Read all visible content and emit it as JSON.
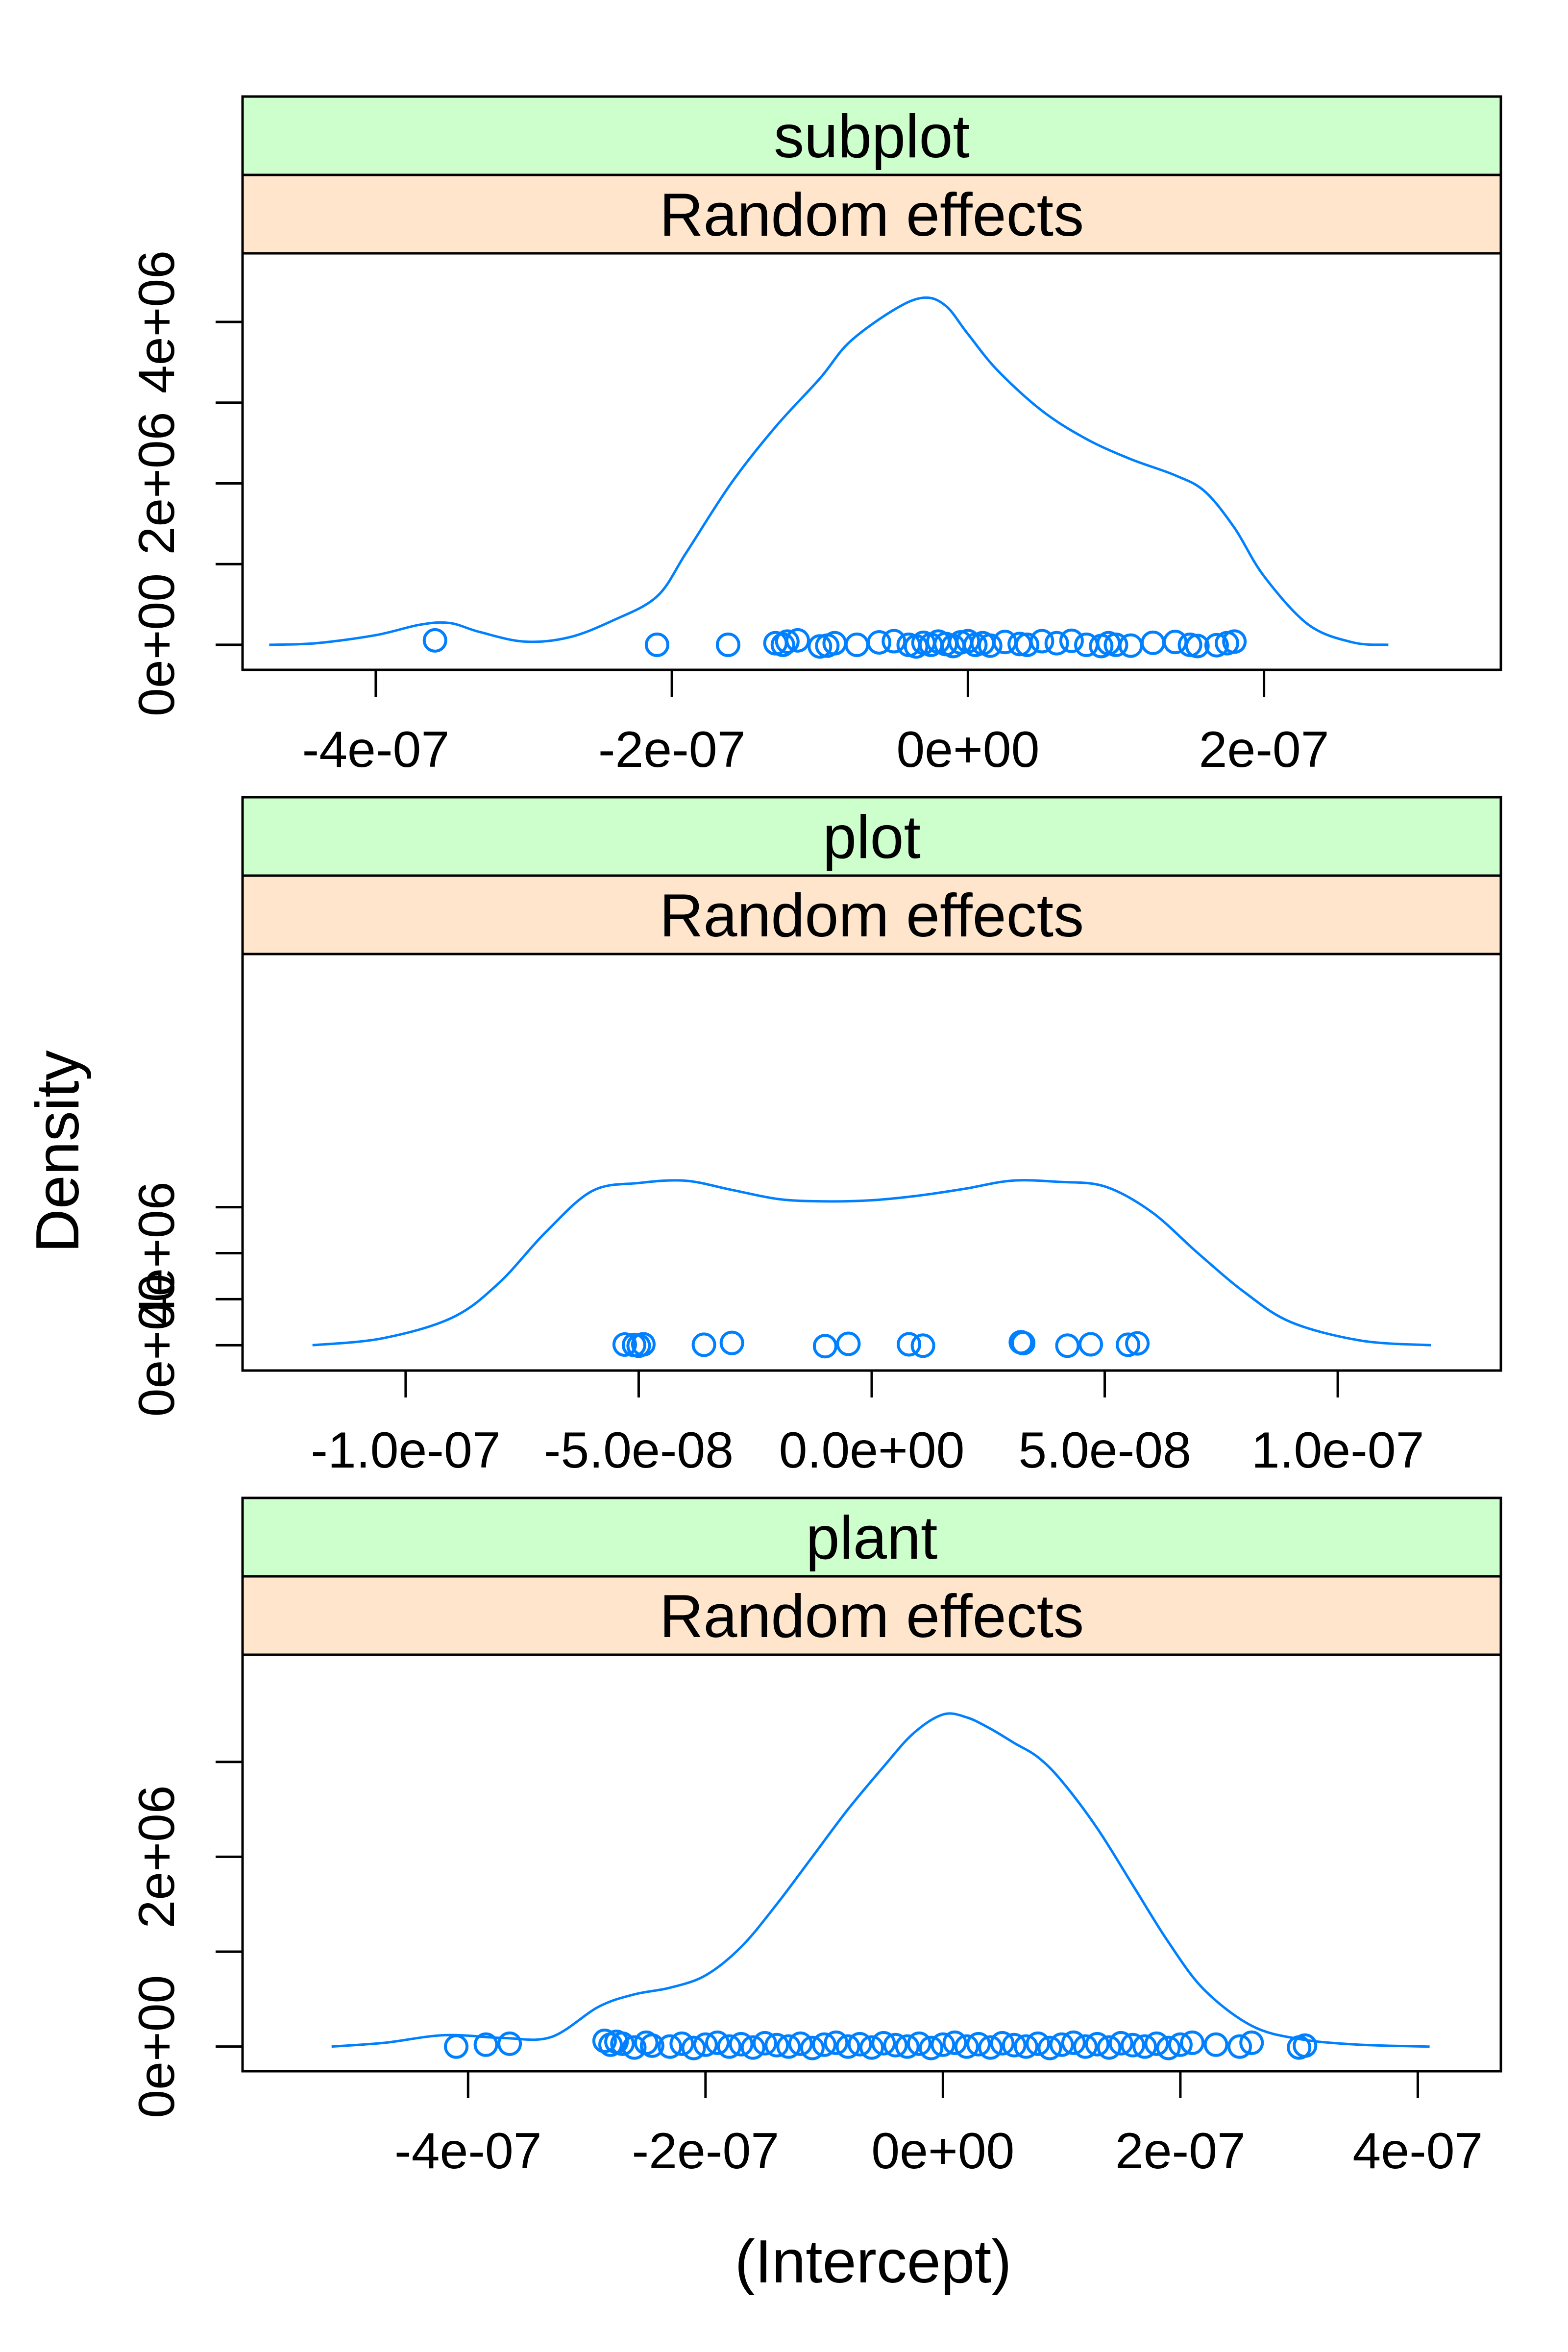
{
  "colors": {
    "curve": "#0080ff",
    "strip_top": "#ccffcc",
    "strip_bottom": "#ffe5cc",
    "frame": "#000000"
  },
  "chart_data": {
    "type": "density",
    "xlabel": "(Intercept)",
    "ylabel": "Density",
    "panels": [
      {
        "strip_top": "subplot",
        "strip_bottom": "Random effects",
        "xlim": [
          -4.9e-07,
          3.6e-07
        ],
        "ylim": [
          -310000.0,
          4850000.0
        ],
        "x_ticks": [
          -4e-07,
          -2e-07,
          0,
          2e-07
        ],
        "x_tick_labels": [
          "-4e-07",
          "-2e-07",
          "0e+00",
          "2e-07"
        ],
        "y_ticks": [
          0,
          1000000.0,
          2000000.0,
          3000000.0,
          4000000.0
        ],
        "y_tick_labels": [
          "0e+00",
          "",
          "2e+06",
          "",
          "4e+06"
        ],
        "density": {
          "x": [
            -4.72e-07,
            -4.4e-07,
            -4e-07,
            -3.7e-07,
            -3.5e-07,
            -3.3e-07,
            -3e-07,
            -2.7e-07,
            -2.4e-07,
            -2.1e-07,
            -1.9e-07,
            -1.6e-07,
            -1.3e-07,
            -1e-07,
            -8e-08,
            -5e-08,
            -3e-08,
            -1.5e-08,
            0,
            2e-08,
            5e-08,
            8e-08,
            1.1e-07,
            1.4e-07,
            1.6e-07,
            1.8e-07,
            2e-07,
            2.3e-07,
            2.6e-07,
            2.84e-07
          ],
          "y": [
            0,
            20000,
            120000,
            250000,
            270000,
            160000,
            40000,
            90000,
            300000,
            600000,
            1150000,
            2000000,
            2700000,
            3300000,
            3750000,
            4150000,
            4300000,
            4200000,
            3850000,
            3400000,
            2900000,
            2550000,
            2300000,
            2100000,
            1900000,
            1450000,
            850000,
            250000,
            30000,
            0
          ]
        },
        "rug": [
          -3.6e-07,
          -2.1e-07,
          -1.62e-07,
          -1.3e-07,
          -1.25e-07,
          -1.22e-07,
          -1.15e-07,
          -1e-07,
          -9.5e-08,
          -9e-08,
          -7.5e-08,
          -6e-08,
          -5e-08,
          -4e-08,
          -3.5e-08,
          -3e-08,
          -2.5e-08,
          -2e-08,
          -1.5e-08,
          -1e-08,
          -5e-09,
          0,
          5e-09,
          1e-08,
          1.5e-08,
          2.5e-08,
          3.5e-08,
          4e-08,
          5e-08,
          6e-08,
          7e-08,
          8e-08,
          9e-08,
          9.5e-08,
          1e-07,
          1.1e-07,
          1.25e-07,
          1.4e-07,
          1.5e-07,
          1.55e-07,
          1.68e-07,
          1.75e-07,
          1.8e-07
        ],
        "rug_y": [
          55000,
          0,
          0,
          20000,
          0,
          40000,
          55000,
          -20000,
          -10000,
          20000,
          0,
          30000,
          45000,
          0,
          -20000,
          25000,
          0,
          40000,
          10000,
          -15000,
          30000,
          45000,
          0,
          20000,
          -10000,
          35000,
          10000,
          0,
          45000,
          20000,
          50000,
          0,
          -15000,
          20000,
          0,
          -10000,
          25000,
          35000,
          0,
          -15000,
          -5000,
          20000,
          40000
        ]
      },
      {
        "strip_top": "plot",
        "strip_bottom": "Random effects",
        "xlim": [
          -1.35e-07,
          1.35e-07
        ],
        "ylim": [
          -1100000.0,
          17000000.0
        ],
        "x_ticks": [
          -1e-07,
          -5e-08,
          0,
          5e-08,
          1e-07
        ],
        "x_tick_labels": [
          "-1.0e-07",
          "-5.0e-08",
          "0.0e+00",
          "5.0e-08",
          "1.0e-07"
        ],
        "y_ticks": [
          0,
          2000000.0,
          4000000.0,
          6000000.0
        ],
        "y_tick_labels": [
          "0e+00",
          "",
          "4e+06",
          ""
        ],
        "density": {
          "x": [
            -1.2e-07,
            -1.05e-07,
            -9e-08,
            -8e-08,
            -7e-08,
            -6e-08,
            -5e-08,
            -4e-08,
            -3e-08,
            -2e-08,
            -1e-08,
            0,
            1e-08,
            2e-08,
            3e-08,
            4e-08,
            5e-08,
            6e-08,
            7e-08,
            8e-08,
            9e-08,
            1.05e-07,
            1.2e-07
          ],
          "y": [
            0,
            300000,
            1200000,
            2700000,
            4900000,
            6700000,
            7050000,
            7150000,
            6750000,
            6350000,
            6250000,
            6300000,
            6500000,
            6800000,
            7150000,
            7100000,
            6900000,
            5800000,
            4000000,
            2300000,
            1000000,
            200000,
            0
          ]
        },
        "rug": [
          -5.3e-08,
          -5.1e-08,
          -5e-08,
          -4.9e-08,
          -3.6e-08,
          -3e-08,
          -1e-08,
          -5e-09,
          8e-09,
          1.1e-08,
          3.2e-08,
          3.25e-08,
          4.2e-08,
          4.7e-08,
          5.5e-08,
          5.7e-08
        ],
        "rug_y": [
          30000,
          10000,
          -20000,
          40000,
          20000,
          100000,
          -40000,
          60000,
          40000,
          -20000,
          130000,
          90000,
          -20000,
          40000,
          20000,
          80000
        ]
      },
      {
        "strip_top": "plant",
        "strip_bottom": "Random effects",
        "xlim": [
          -5.9e-07,
          4.7e-07
        ],
        "ylim": [
          -260000.0,
          4130000.0
        ],
        "x_ticks": [
          -4e-07,
          -2e-07,
          0,
          2e-07,
          4e-07
        ],
        "x_tick_labels": [
          "-4e-07",
          "-2e-07",
          "0e+00",
          "2e-07",
          "4e-07"
        ],
        "y_ticks": [
          0,
          1000000.0,
          2000000.0,
          3000000.0
        ],
        "y_tick_labels": [
          "0e+00",
          "",
          "2e+06",
          ""
        ],
        "density": {
          "x": [
            -5.15e-07,
            -4.7e-07,
            -4.2e-07,
            -3.7e-07,
            -3.3e-07,
            -2.9e-07,
            -2.6e-07,
            -2.3e-07,
            -2e-07,
            -1.7e-07,
            -1.4e-07,
            -1.1e-07,
            -8e-08,
            -5e-08,
            -2.5e-08,
            0,
            2e-08,
            4e-08,
            6e-08,
            8e-08,
            1e-07,
            1.3e-07,
            1.6e-07,
            1.9e-07,
            2.2e-07,
            2.6e-07,
            3e-07,
            3.5e-07,
            4.1e-07
          ],
          "y": [
            0,
            40000,
            120000,
            90000,
            100000,
            420000,
            550000,
            620000,
            750000,
            1050000,
            1500000,
            2000000,
            2500000,
            2950000,
            3300000,
            3500000,
            3470000,
            3350000,
            3200000,
            3050000,
            2800000,
            2300000,
            1700000,
            1100000,
            600000,
            220000,
            80000,
            20000,
            0
          ]
        },
        "rug": [
          -4.1e-07,
          -3.85e-07,
          -3.65e-07,
          -2.85e-07,
          -2.8e-07,
          -2.75e-07,
          -2.7e-07,
          -2.6e-07,
          -2.5e-07,
          -2.45e-07,
          -2.3e-07,
          -2.2e-07,
          -2.1e-07,
          -2e-07,
          -1.9e-07,
          -1.8e-07,
          -1.7e-07,
          -1.6e-07,
          -1.5e-07,
          -1.4e-07,
          -1.3e-07,
          -1.2e-07,
          -1.1e-07,
          -1e-07,
          -9e-08,
          -8e-08,
          -7e-08,
          -6e-08,
          -5e-08,
          -4e-08,
          -3e-08,
          -2e-08,
          -1e-08,
          0,
          1e-08,
          2e-08,
          3e-08,
          4e-08,
          5e-08,
          6e-08,
          7e-08,
          8e-08,
          9e-08,
          1e-07,
          1.1e-07,
          1.2e-07,
          1.3e-07,
          1.4e-07,
          1.5e-07,
          1.6e-07,
          1.7e-07,
          1.8e-07,
          1.9e-07,
          2e-07,
          2.1e-07,
          2.3e-07,
          2.5e-07,
          2.6e-07,
          3e-07,
          3.05e-07
        ],
        "rug_y": [
          0,
          20000,
          30000,
          60000,
          20000,
          50000,
          30000,
          -10000,
          40000,
          10000,
          0,
          30000,
          -15000,
          20000,
          40000,
          0,
          25000,
          -10000,
          35000,
          15000,
          0,
          30000,
          -15000,
          20000,
          40000,
          0,
          25000,
          -10000,
          35000,
          15000,
          0,
          30000,
          -15000,
          20000,
          40000,
          0,
          25000,
          -10000,
          35000,
          15000,
          0,
          30000,
          -15000,
          20000,
          40000,
          0,
          25000,
          -10000,
          35000,
          15000,
          0,
          30000,
          -15000,
          20000,
          40000,
          20000,
          0,
          40000,
          -10000,
          10000
        ]
      }
    ]
  }
}
